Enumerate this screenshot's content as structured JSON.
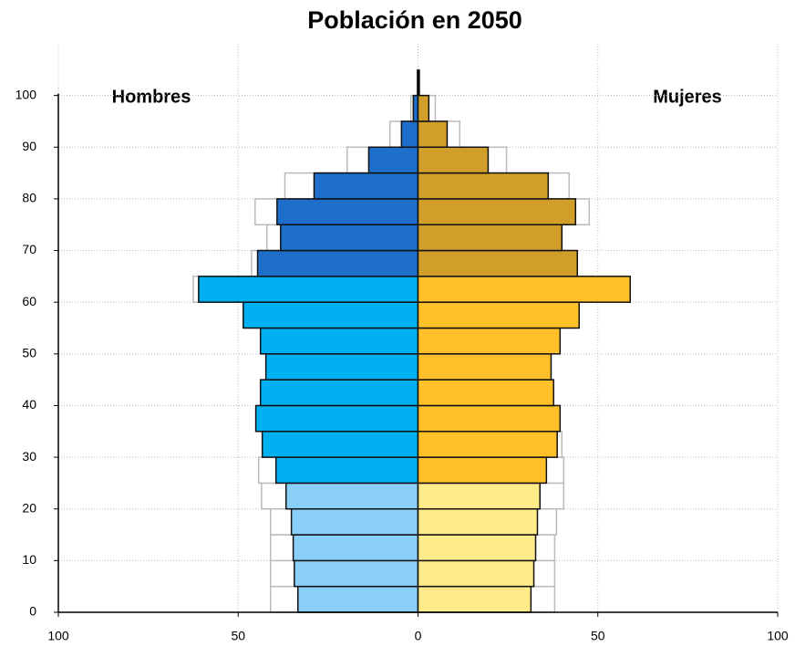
{
  "chart_data": {
    "type": "pyramid",
    "title": "Población en 2050",
    "x": [
      0,
      5,
      10,
      15,
      20,
      25,
      30,
      35,
      40,
      45,
      50,
      55,
      60,
      65,
      70,
      75,
      80,
      85,
      90,
      95,
      100
    ],
    "band": 5,
    "series": [
      {
        "name": "Hombres",
        "side": "left",
        "values": [
          33.4,
          34.4,
          34.7,
          35.2,
          36.7,
          39.5,
          43.3,
          45.1,
          43.8,
          42.3,
          43.8,
          48.6,
          61.0,
          44.6,
          38.2,
          39.2,
          28.9,
          13.7,
          4.6,
          1.3,
          0.3
        ],
        "colors": [
          "#89cff8",
          "#89cff8",
          "#89cff8",
          "#89cff8",
          "#89cff8",
          "#00b0f0",
          "#00b0f0",
          "#00b0f0",
          "#00b0f0",
          "#00b0f0",
          "#00b0f0",
          "#00b0f0",
          "#00b0f0",
          "#1e6fcc",
          "#1e6fcc",
          "#1e6fcc",
          "#1e6fcc",
          "#1e6fcc",
          "#1e6fcc",
          "#1e6fcc",
          "#1e6fcc"
        ]
      },
      {
        "name": "Mujeres",
        "side": "right",
        "values": [
          31.4,
          32.2,
          32.7,
          33.2,
          33.9,
          35.7,
          38.7,
          39.5,
          37.7,
          37.0,
          39.5,
          44.8,
          59.0,
          44.3,
          40.0,
          43.8,
          36.2,
          19.5,
          8.1,
          3.0,
          0.3
        ],
        "colors": [
          "#ffeb8a",
          "#ffeb8a",
          "#ffeb8a",
          "#ffeb8a",
          "#ffeb8a",
          "#ffc02a",
          "#ffc02a",
          "#ffc02a",
          "#ffc02a",
          "#ffc02a",
          "#ffc02a",
          "#ffc02a",
          "#ffc02a",
          "#d19e2a",
          "#d19e2a",
          "#d19e2a",
          "#d19e2a",
          "#d19e2a",
          "#d19e2a",
          "#d19e2a",
          "#d19e2a"
        ]
      },
      {
        "side": "left",
        "outline": true,
        "color": "#bbbbbb",
        "values": [
          41,
          41,
          41,
          41,
          43.5,
          44.3,
          43,
          43,
          42,
          41,
          43,
          47,
          62.5,
          46.3,
          42,
          45.3,
          37,
          19.7,
          7.8,
          2,
          0.3
        ]
      },
      {
        "side": "right",
        "outline": true,
        "color": "#bbbbbb",
        "values": [
          38,
          38,
          38,
          38.5,
          40.5,
          40.5,
          40,
          38,
          37,
          36,
          38,
          43,
          58,
          43,
          40,
          47.6,
          42,
          24.6,
          11.6,
          4.8,
          0.3
        ]
      }
    ],
    "xlim": [
      -100,
      100
    ],
    "xticks": [
      {
        "value": -100,
        "label": "100"
      },
      {
        "value": -50,
        "label": "50"
      },
      0,
      50,
      100
    ],
    "ylim": [
      0,
      110
    ],
    "yticks": [
      0,
      10,
      20,
      30,
      40,
      50,
      60,
      70,
      80,
      90,
      100
    ],
    "grid": true
  }
}
